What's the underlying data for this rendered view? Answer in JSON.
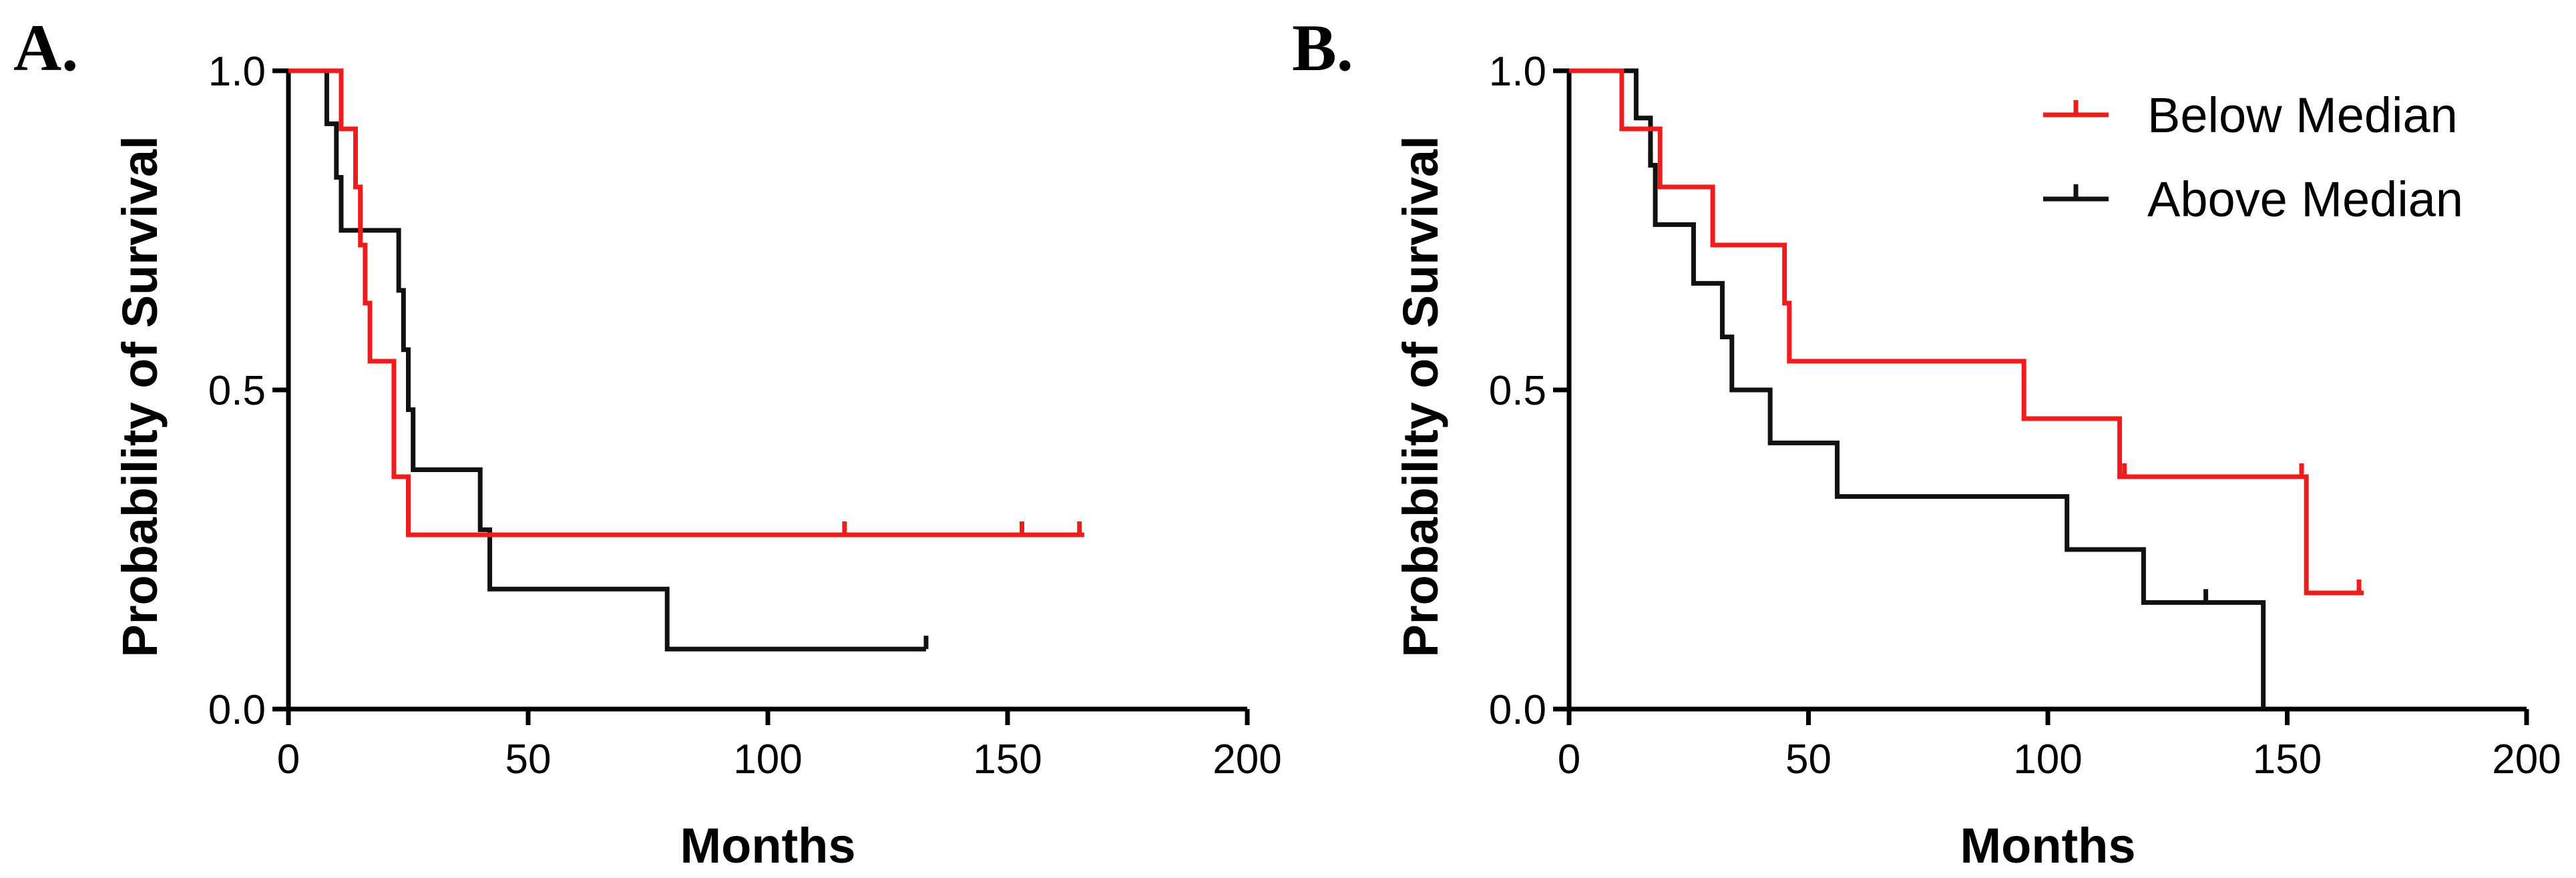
{
  "chart_data": [
    {
      "type": "kaplan-meier",
      "panel_label": "A.",
      "xlabel": "Months",
      "ylabel": "Probability of Survival",
      "xlim": [
        0,
        200
      ],
      "ylim": [
        0,
        1
      ],
      "xticks": [
        0,
        50,
        100,
        150,
        200
      ],
      "xtick_labels": [
        "0",
        "50",
        "100",
        "150",
        "200"
      ],
      "yticks": [
        0,
        0.5,
        1
      ],
      "ytick_labels": [
        "0.0",
        "0.5",
        "1.0"
      ],
      "grid": false,
      "series": [
        {
          "name": "Below Median",
          "color": "#ee1c1c",
          "steps": [
            [
              0,
              1
            ],
            [
              11,
              0.909
            ],
            [
              14,
              0.818
            ],
            [
              15,
              0.727
            ],
            [
              16,
              0.636
            ],
            [
              17,
              0.545
            ],
            [
              22,
              0.364
            ],
            [
              25,
              0.273
            ]
          ],
          "end": 166,
          "censor": [
            116,
            153,
            165
          ]
        },
        {
          "name": "Above Median",
          "color": "#111111",
          "steps": [
            [
              0,
              1
            ],
            [
              8,
              0.917
            ],
            [
              10,
              0.833
            ],
            [
              11,
              0.75
            ],
            [
              23,
              0.656
            ],
            [
              24,
              0.563
            ],
            [
              25,
              0.469
            ],
            [
              26,
              0.375
            ],
            [
              40,
              0.281
            ],
            [
              42,
              0.188
            ],
            [
              79,
              0.094
            ]
          ],
          "end": 133,
          "censor": [
            133
          ]
        }
      ]
    },
    {
      "type": "kaplan-meier",
      "panel_label": "B.",
      "xlabel": "Months",
      "ylabel": "Probability of Survival",
      "xlim": [
        0,
        200
      ],
      "ylim": [
        0,
        1
      ],
      "xticks": [
        0,
        50,
        100,
        150,
        200
      ],
      "xtick_labels": [
        "0",
        "50",
        "100",
        "150",
        "200"
      ],
      "yticks": [
        0,
        0.5,
        1
      ],
      "ytick_labels": [
        "0.0",
        "0.5",
        "1.0"
      ],
      "grid": false,
      "legend": {
        "position": "top-right",
        "entries": [
          {
            "label": "Below Median",
            "color": "#ee1c1c"
          },
          {
            "label": "Above Median",
            "color": "#111111"
          }
        ]
      },
      "series": [
        {
          "name": "Below Median",
          "color": "#ee1c1c",
          "steps": [
            [
              0,
              1
            ],
            [
              11,
              0.909
            ],
            [
              19,
              0.818
            ],
            [
              30,
              0.727
            ],
            [
              45,
              0.636
            ],
            [
              46,
              0.545
            ],
            [
              95,
              0.455
            ],
            [
              115,
              0.364
            ],
            [
              154,
              0.182
            ]
          ],
          "end": 166,
          "censor": [
            116,
            153,
            165
          ]
        },
        {
          "name": "Above Median",
          "color": "#111111",
          "steps": [
            [
              0,
              1
            ],
            [
              14,
              0.926
            ],
            [
              17,
              0.852
            ],
            [
              18,
              0.759
            ],
            [
              26,
              0.667
            ],
            [
              32,
              0.583
            ],
            [
              34,
              0.5
            ],
            [
              42,
              0.417
            ],
            [
              56,
              0.333
            ],
            [
              104,
              0.25
            ],
            [
              120,
              0.167
            ],
            [
              145,
              0
            ]
          ],
          "end": 145,
          "censor": [
            17,
            133
          ]
        }
      ]
    }
  ]
}
